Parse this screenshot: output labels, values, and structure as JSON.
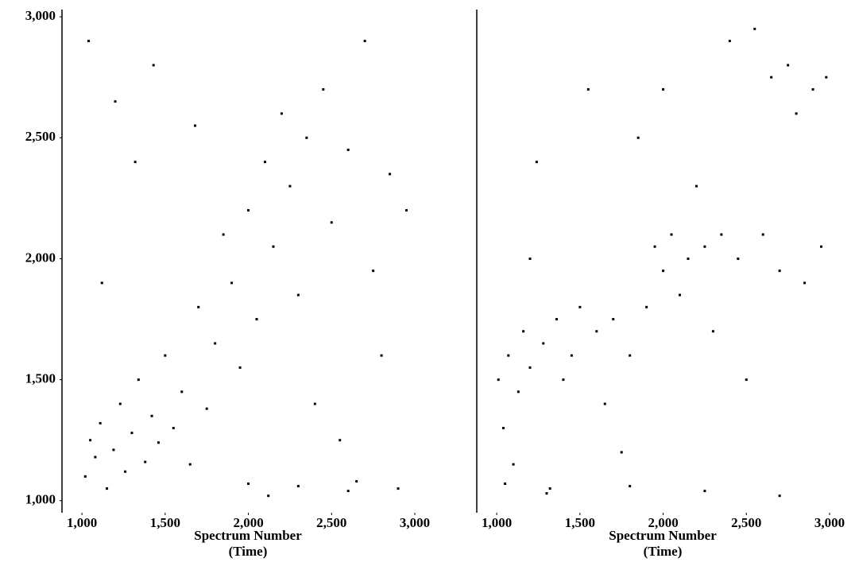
{
  "chart_data": [
    {
      "type": "scatter",
      "color": "#000000",
      "xlabel": "Spectrum Number",
      "xlabel_sub": "(Time)",
      "xlim": [
        880,
        3000
      ],
      "ylim": [
        950,
        3030
      ],
      "xticks": [
        {
          "value": 1000,
          "label": "1,000"
        },
        {
          "value": 1500,
          "label": "1,500"
        },
        {
          "value": 2000,
          "label": "2,000"
        },
        {
          "value": 2500,
          "label": "2,500"
        },
        {
          "value": 3000,
          "label": "3,000"
        }
      ],
      "yticks": [
        {
          "value": 1000,
          "label": "1,000"
        },
        {
          "value": 1500,
          "label": "1,500"
        },
        {
          "value": 2000,
          "label": "2,000"
        },
        {
          "value": 2500,
          "label": "2,500"
        },
        {
          "value": 3000,
          "label": "3,000"
        }
      ],
      "x": [
        1020,
        1050,
        1080,
        1110,
        1150,
        1190,
        1230,
        1260,
        1300,
        1340,
        1380,
        1420,
        1460,
        1500,
        1550,
        1600,
        1650,
        1700,
        1750,
        1800,
        1850,
        1900,
        1950,
        2000,
        2050,
        2100,
        2150,
        2200,
        2250,
        2300,
        2350,
        2400,
        2450,
        2500,
        2550,
        2600,
        2650,
        2700,
        2750,
        2800,
        2850,
        2900,
        2950,
        1040,
        1120,
        1200,
        1320,
        2000,
        2300,
        2600,
        1430,
        1680,
        2120
      ],
      "y": [
        1100,
        1250,
        1180,
        1320,
        1050,
        1210,
        1400,
        1120,
        1280,
        1500,
        1160,
        1350,
        1240,
        1600,
        1300,
        1450,
        1150,
        1800,
        1380,
        1650,
        2100,
        1900,
        1550,
        2200,
        1750,
        2400,
        2050,
        2600,
        2300,
        1850,
        2500,
        1400,
        2700,
        2150,
        1250,
        2450,
        1080,
        2900,
        1950,
        1600,
        2350,
        1050,
        2200,
        2900,
        1900,
        2650,
        2400,
        1070,
        1060,
        1040,
        2800,
        2550,
        1020
      ]
    },
    {
      "type": "scatter",
      "color": "#000000",
      "xlabel": "Spectrum Number",
      "xlabel_sub": "(Time)",
      "xlim": [
        880,
        3000
      ],
      "ylim": [
        950,
        3030
      ],
      "xticks": [
        {
          "value": 1000,
          "label": "1,000"
        },
        {
          "value": 1500,
          "label": "1,500"
        },
        {
          "value": 2000,
          "label": "2,000"
        },
        {
          "value": 2500,
          "label": "2,500"
        },
        {
          "value": 3000,
          "label": "3,000"
        }
      ],
      "x": [
        1010,
        1040,
        1070,
        1100,
        1130,
        1160,
        1200,
        1240,
        1280,
        1320,
        1360,
        1400,
        1450,
        1500,
        1550,
        1600,
        1650,
        1700,
        1750,
        1800,
        1850,
        1900,
        1950,
        2000,
        2050,
        2100,
        2150,
        2200,
        2250,
        2300,
        2350,
        2400,
        2450,
        2500,
        2550,
        2600,
        2650,
        2700,
        2750,
        2800,
        2850,
        2900,
        2950,
        2980,
        1050,
        1300,
        1800,
        2250,
        2700,
        1200,
        2000
      ],
      "y": [
        1500,
        1300,
        1600,
        1150,
        1450,
        1700,
        1550,
        2400,
        1650,
        1050,
        1750,
        1500,
        1600,
        1800,
        2700,
        1700,
        1400,
        1750,
        1200,
        1600,
        2500,
        1800,
        2050,
        1950,
        2100,
        1850,
        2000,
        2300,
        2050,
        1700,
        2100,
        2900,
        2000,
        1500,
        2950,
        2100,
        2750,
        1950,
        2800,
        2600,
        1900,
        2700,
        2050,
        2750,
        1070,
        1030,
        1060,
        1040,
        1020,
        2000,
        2700
      ]
    }
  ]
}
